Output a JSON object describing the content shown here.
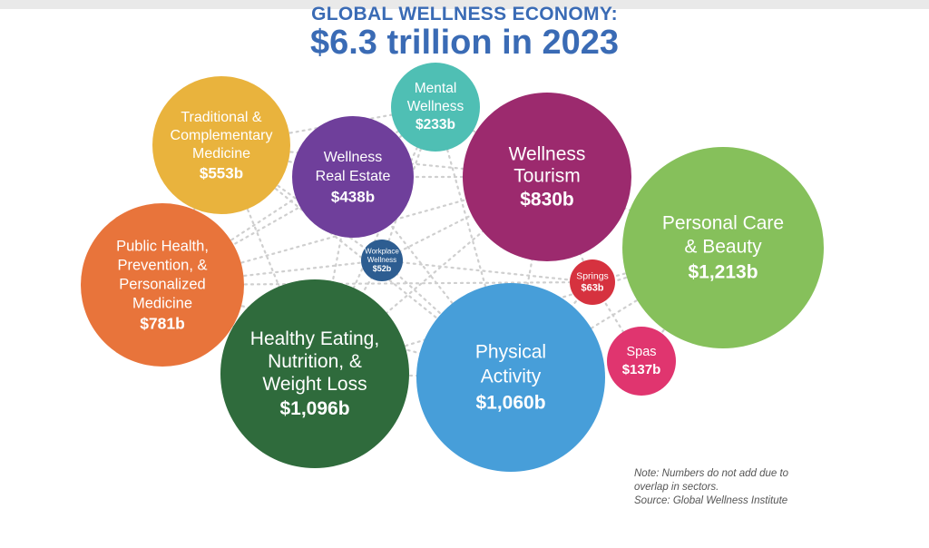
{
  "header": {
    "title": "GLOBAL WELLNESS ECONOMY:",
    "subtitle": "$6.3 trillion in 2023"
  },
  "note": {
    "line1": "Note: Numbers do not add due to",
    "line2": "overlap in sectors.",
    "line3": "Source: Global Wellness Institute"
  },
  "chart_data": {
    "type": "bubble",
    "title": "GLOBAL WELLNESS ECONOMY:",
    "subtitle": "$6.3 trillion in 2023",
    "units": "billions USD",
    "bubbles": [
      {
        "id": "traditional",
        "label_lines": [
          "Traditional &",
          "Complementary",
          "Medicine"
        ],
        "value": 553,
        "value_label": "$553b",
        "color": "#e9b33d"
      },
      {
        "id": "mental",
        "label_lines": [
          "Mental",
          "Wellness"
        ],
        "value": 233,
        "value_label": "$233b",
        "color": "#4fbfb4"
      },
      {
        "id": "realestate",
        "label_lines": [
          "Wellness",
          "Real Estate"
        ],
        "value": 438,
        "value_label": "$438b",
        "color": "#6f3f9b"
      },
      {
        "id": "tourism",
        "label_lines": [
          "Wellness",
          "Tourism"
        ],
        "value": 830,
        "value_label": "$830b",
        "color": "#9c2a6e"
      },
      {
        "id": "personalcare",
        "label_lines": [
          "Personal Care",
          "& Beauty"
        ],
        "value": 1213,
        "value_label": "$1,213b",
        "color": "#86c05b"
      },
      {
        "id": "publichealth",
        "label_lines": [
          "Public Health,",
          "Prevention, &",
          "Personalized",
          "Medicine"
        ],
        "value": 781,
        "value_label": "$781b",
        "color": "#e8743b"
      },
      {
        "id": "workplace",
        "label_lines": [
          "Workplace",
          "Wellness"
        ],
        "value": 52,
        "value_label": "$52b",
        "color": "#2d5d91"
      },
      {
        "id": "springs",
        "label_lines": [
          "Springs"
        ],
        "value": 63,
        "value_label": "$63b",
        "color": "#d6323f"
      },
      {
        "id": "eating",
        "label_lines": [
          "Healthy Eating,",
          "Nutrition, &",
          "Weight Loss"
        ],
        "value": 1096,
        "value_label": "$1,096b",
        "color": "#2f6b3c"
      },
      {
        "id": "physical",
        "label_lines": [
          "Physical",
          "Activity"
        ],
        "value": 1060,
        "value_label": "$1,060b",
        "color": "#479ed9"
      },
      {
        "id": "spas",
        "label_lines": [
          "Spas"
        ],
        "value": 137,
        "value_label": "$137b",
        "color": "#e0356f"
      }
    ]
  }
}
